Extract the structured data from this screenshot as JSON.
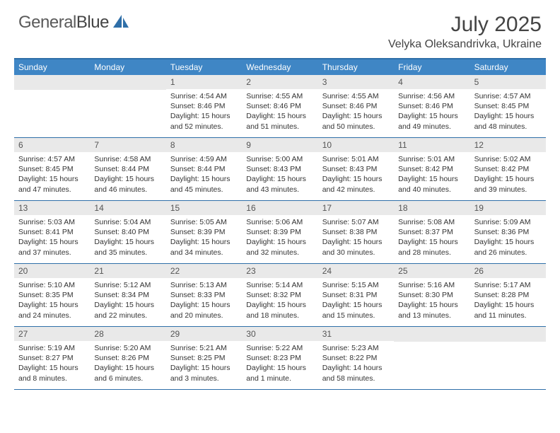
{
  "brand": {
    "part1": "General",
    "part2": "Blue"
  },
  "title": "July 2025",
  "location": "Velyka Oleksandrivka, Ukraine",
  "colors": {
    "header_bg": "#3f86c5",
    "rule": "#2f6fa8",
    "daynum_bg": "#e9e9e9",
    "text": "#333333",
    "logo_gray": "#5a5a5a",
    "logo_blue": "#2f6fa8"
  },
  "dow": [
    "Sunday",
    "Monday",
    "Tuesday",
    "Wednesday",
    "Thursday",
    "Friday",
    "Saturday"
  ],
  "weeks": [
    [
      null,
      null,
      {
        "n": "1",
        "sr": "4:54 AM",
        "ss": "8:46 PM",
        "dl": "15 hours and 52 minutes."
      },
      {
        "n": "2",
        "sr": "4:55 AM",
        "ss": "8:46 PM",
        "dl": "15 hours and 51 minutes."
      },
      {
        "n": "3",
        "sr": "4:55 AM",
        "ss": "8:46 PM",
        "dl": "15 hours and 50 minutes."
      },
      {
        "n": "4",
        "sr": "4:56 AM",
        "ss": "8:46 PM",
        "dl": "15 hours and 49 minutes."
      },
      {
        "n": "5",
        "sr": "4:57 AM",
        "ss": "8:45 PM",
        "dl": "15 hours and 48 minutes."
      }
    ],
    [
      {
        "n": "6",
        "sr": "4:57 AM",
        "ss": "8:45 PM",
        "dl": "15 hours and 47 minutes."
      },
      {
        "n": "7",
        "sr": "4:58 AM",
        "ss": "8:44 PM",
        "dl": "15 hours and 46 minutes."
      },
      {
        "n": "8",
        "sr": "4:59 AM",
        "ss": "8:44 PM",
        "dl": "15 hours and 45 minutes."
      },
      {
        "n": "9",
        "sr": "5:00 AM",
        "ss": "8:43 PM",
        "dl": "15 hours and 43 minutes."
      },
      {
        "n": "10",
        "sr": "5:01 AM",
        "ss": "8:43 PM",
        "dl": "15 hours and 42 minutes."
      },
      {
        "n": "11",
        "sr": "5:01 AM",
        "ss": "8:42 PM",
        "dl": "15 hours and 40 minutes."
      },
      {
        "n": "12",
        "sr": "5:02 AM",
        "ss": "8:42 PM",
        "dl": "15 hours and 39 minutes."
      }
    ],
    [
      {
        "n": "13",
        "sr": "5:03 AM",
        "ss": "8:41 PM",
        "dl": "15 hours and 37 minutes."
      },
      {
        "n": "14",
        "sr": "5:04 AM",
        "ss": "8:40 PM",
        "dl": "15 hours and 35 minutes."
      },
      {
        "n": "15",
        "sr": "5:05 AM",
        "ss": "8:39 PM",
        "dl": "15 hours and 34 minutes."
      },
      {
        "n": "16",
        "sr": "5:06 AM",
        "ss": "8:39 PM",
        "dl": "15 hours and 32 minutes."
      },
      {
        "n": "17",
        "sr": "5:07 AM",
        "ss": "8:38 PM",
        "dl": "15 hours and 30 minutes."
      },
      {
        "n": "18",
        "sr": "5:08 AM",
        "ss": "8:37 PM",
        "dl": "15 hours and 28 minutes."
      },
      {
        "n": "19",
        "sr": "5:09 AM",
        "ss": "8:36 PM",
        "dl": "15 hours and 26 minutes."
      }
    ],
    [
      {
        "n": "20",
        "sr": "5:10 AM",
        "ss": "8:35 PM",
        "dl": "15 hours and 24 minutes."
      },
      {
        "n": "21",
        "sr": "5:12 AM",
        "ss": "8:34 PM",
        "dl": "15 hours and 22 minutes."
      },
      {
        "n": "22",
        "sr": "5:13 AM",
        "ss": "8:33 PM",
        "dl": "15 hours and 20 minutes."
      },
      {
        "n": "23",
        "sr": "5:14 AM",
        "ss": "8:32 PM",
        "dl": "15 hours and 18 minutes."
      },
      {
        "n": "24",
        "sr": "5:15 AM",
        "ss": "8:31 PM",
        "dl": "15 hours and 15 minutes."
      },
      {
        "n": "25",
        "sr": "5:16 AM",
        "ss": "8:30 PM",
        "dl": "15 hours and 13 minutes."
      },
      {
        "n": "26",
        "sr": "5:17 AM",
        "ss": "8:28 PM",
        "dl": "15 hours and 11 minutes."
      }
    ],
    [
      {
        "n": "27",
        "sr": "5:19 AM",
        "ss": "8:27 PM",
        "dl": "15 hours and 8 minutes."
      },
      {
        "n": "28",
        "sr": "5:20 AM",
        "ss": "8:26 PM",
        "dl": "15 hours and 6 minutes."
      },
      {
        "n": "29",
        "sr": "5:21 AM",
        "ss": "8:25 PM",
        "dl": "15 hours and 3 minutes."
      },
      {
        "n": "30",
        "sr": "5:22 AM",
        "ss": "8:23 PM",
        "dl": "15 hours and 1 minute."
      },
      {
        "n": "31",
        "sr": "5:23 AM",
        "ss": "8:22 PM",
        "dl": "14 hours and 58 minutes."
      },
      null,
      null
    ]
  ],
  "labels": {
    "sunrise": "Sunrise: ",
    "sunset": "Sunset: ",
    "daylight": "Daylight: "
  }
}
